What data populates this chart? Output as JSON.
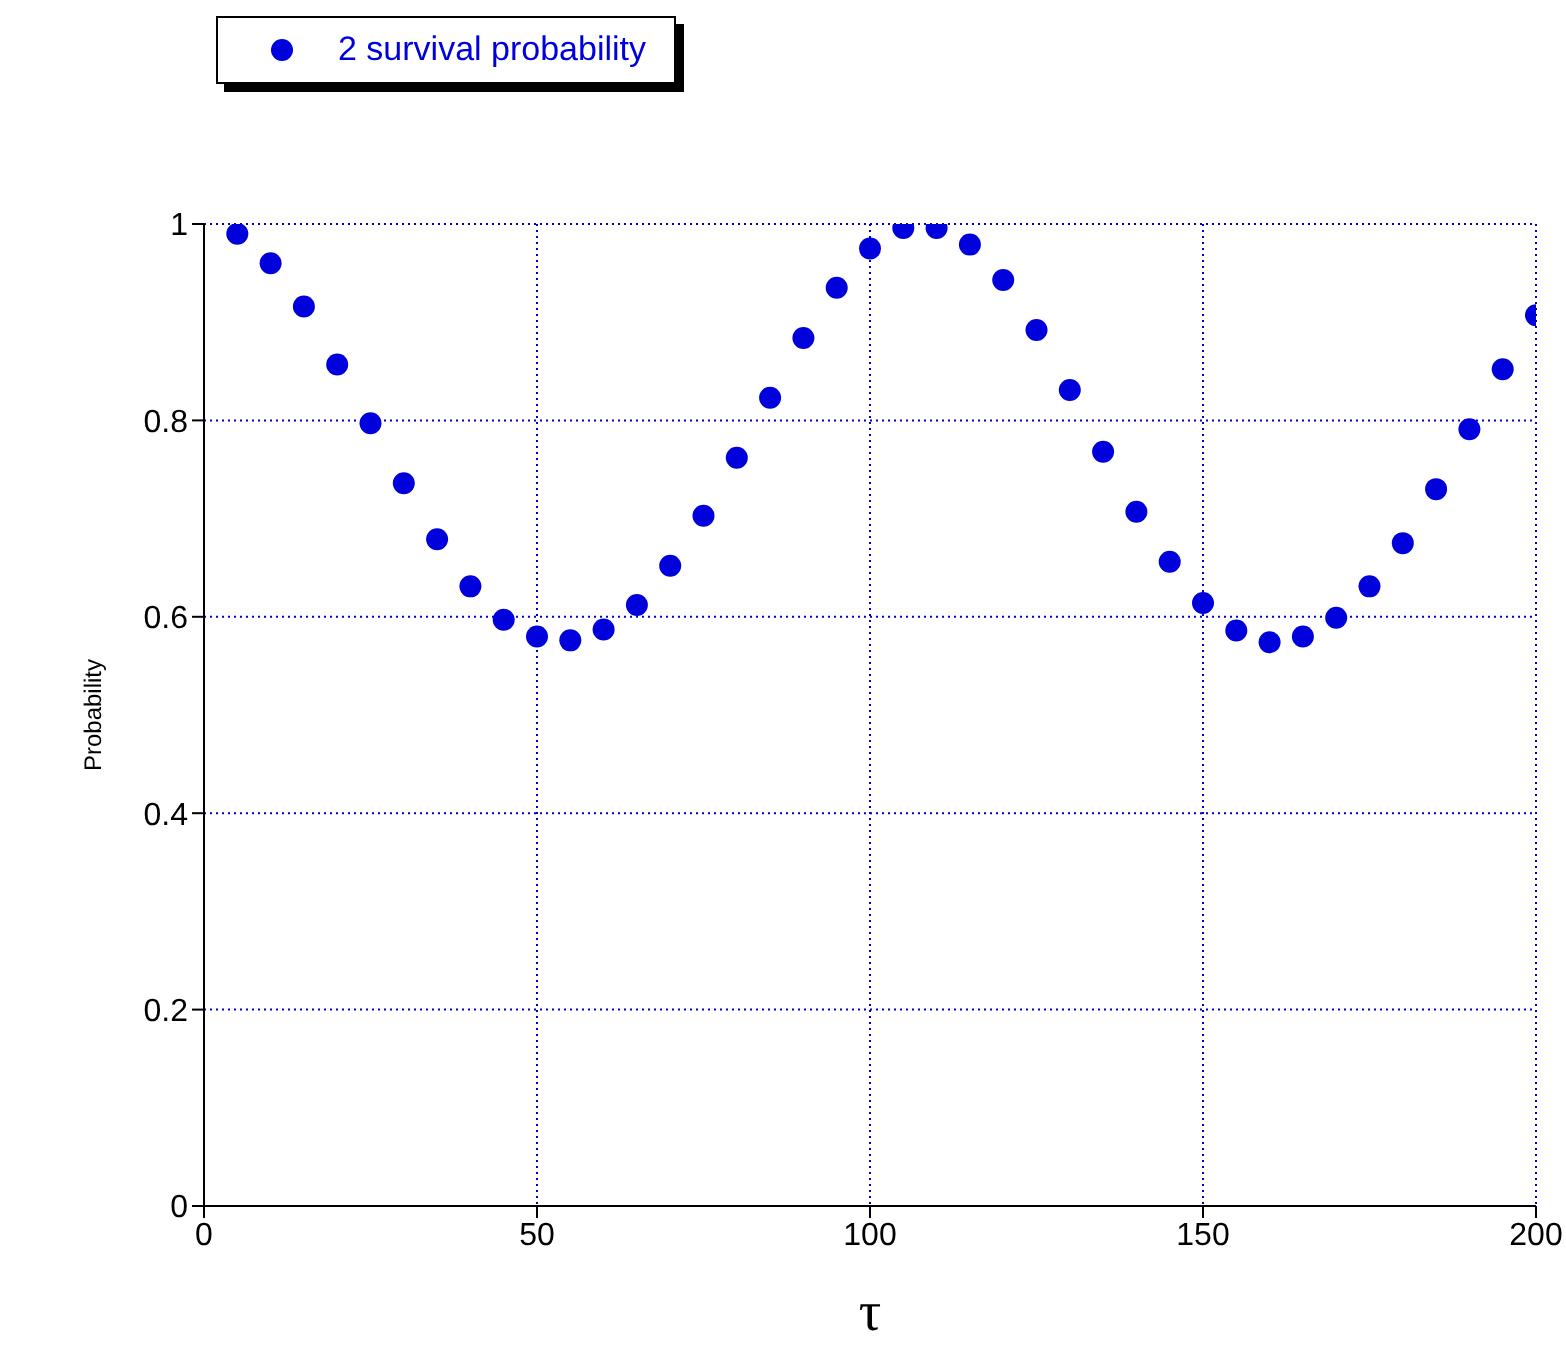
{
  "chart_data": {
    "type": "scatter",
    "xlabel": "τ",
    "ylabel": "Probability",
    "x": [
      5,
      10,
      15,
      20,
      25,
      30,
      35,
      40,
      45,
      50,
      55,
      60,
      65,
      70,
      75,
      80,
      85,
      90,
      95,
      100,
      105,
      110,
      115,
      120,
      125,
      130,
      135,
      140,
      145,
      150,
      155,
      160,
      165,
      170,
      175,
      180,
      185,
      190,
      195,
      200
    ],
    "series": [
      {
        "name": "2 survival probability",
        "color": "#0000dd",
        "values": [
          0.99,
          0.96,
          0.916,
          0.857,
          0.797,
          0.736,
          0.679,
          0.631,
          0.597,
          0.58,
          0.576,
          0.587,
          0.612,
          0.652,
          0.703,
          0.762,
          0.823,
          0.884,
          0.935,
          0.975,
          0.996,
          0.996,
          0.979,
          0.943,
          0.892,
          0.831,
          0.768,
          0.707,
          0.656,
          0.614,
          0.586,
          0.574,
          0.58,
          0.599,
          0.631,
          0.675,
          0.73,
          0.791,
          0.852,
          0.907
        ]
      }
    ],
    "xlim": [
      0,
      200
    ],
    "xticks": [
      0,
      50,
      100,
      150,
      200
    ],
    "ylim": [
      0,
      1
    ],
    "yticks": [
      0,
      0.2,
      0.4,
      0.6,
      0.8,
      1
    ],
    "grid": true,
    "legend": "top left",
    "marker": "circle"
  }
}
